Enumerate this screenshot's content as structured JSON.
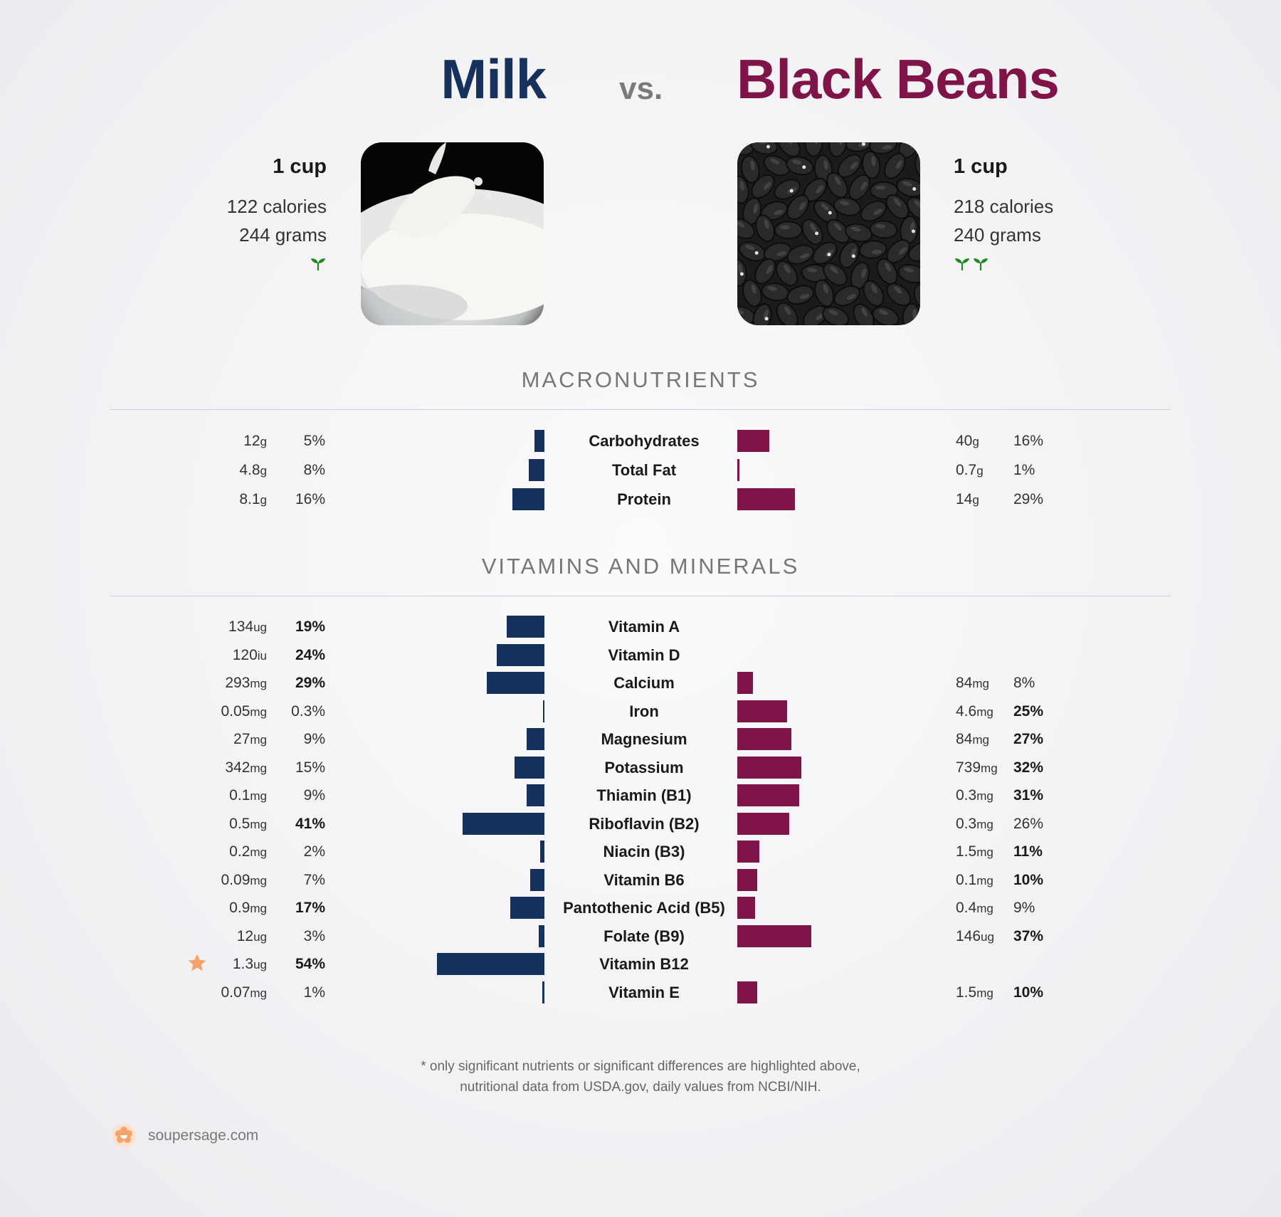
{
  "header": {
    "left_food": "Milk",
    "vs": "vs.",
    "right_food": "Black Beans",
    "colors": {
      "left": "#16325c",
      "right": "#7f1448"
    }
  },
  "left": {
    "serving": "1 cup",
    "calories": "122 calories",
    "grams": "244 grams",
    "sprouts": 1,
    "photo": "milk-splash-photo"
  },
  "right": {
    "serving": "1 cup",
    "calories": "218 calories",
    "grams": "240 grams",
    "sprouts": 2,
    "photo": "black-beans-photo"
  },
  "sections": {
    "macros": "MACRONUTRIENTS",
    "vitamins": "VITAMINS AND MINERALS"
  },
  "chart_data": [
    {
      "type": "bar",
      "title": "MACRONUTRIENTS",
      "series_names": [
        "Milk",
        "Black Beans"
      ],
      "rows": [
        {
          "nutrient": "Carbohydrates",
          "left_amount": "12",
          "left_unit": "g",
          "left_pct": 5,
          "left_pct_label": "5%",
          "left_bold": false,
          "right_amount": "40",
          "right_unit": "g",
          "right_pct": 16,
          "right_pct_label": "16%",
          "right_bold": false
        },
        {
          "nutrient": "Total Fat",
          "left_amount": "4.8",
          "left_unit": "g",
          "left_pct": 8,
          "left_pct_label": "8%",
          "left_bold": false,
          "right_amount": "0.7",
          "right_unit": "g",
          "right_pct": 1,
          "right_pct_label": "1%",
          "right_bold": false
        },
        {
          "nutrient": "Protein",
          "left_amount": "8.1",
          "left_unit": "g",
          "left_pct": 16,
          "left_pct_label": "16%",
          "left_bold": false,
          "right_amount": "14",
          "right_unit": "g",
          "right_pct": 29,
          "right_pct_label": "29%",
          "right_bold": false
        }
      ]
    },
    {
      "type": "bar",
      "title": "VITAMINS AND MINERALS",
      "series_names": [
        "Milk",
        "Black Beans"
      ],
      "rows": [
        {
          "nutrient": "Vitamin A",
          "left_amount": "134",
          "left_unit": "ug",
          "left_pct": 19,
          "left_pct_label": "19%",
          "left_bold": true,
          "right_amount": "",
          "right_unit": "",
          "right_pct": 0,
          "right_pct_label": "",
          "right_bold": false
        },
        {
          "nutrient": "Vitamin D",
          "left_amount": "120",
          "left_unit": "iu",
          "left_pct": 24,
          "left_pct_label": "24%",
          "left_bold": true,
          "right_amount": "",
          "right_unit": "",
          "right_pct": 0,
          "right_pct_label": "",
          "right_bold": false
        },
        {
          "nutrient": "Calcium",
          "left_amount": "293",
          "left_unit": "mg",
          "left_pct": 29,
          "left_pct_label": "29%",
          "left_bold": true,
          "right_amount": "84",
          "right_unit": "mg",
          "right_pct": 8,
          "right_pct_label": "8%",
          "right_bold": false
        },
        {
          "nutrient": "Iron",
          "left_amount": "0.05",
          "left_unit": "mg",
          "left_pct": 0.3,
          "left_pct_label": "0.3%",
          "left_bold": false,
          "right_amount": "4.6",
          "right_unit": "mg",
          "right_pct": 25,
          "right_pct_label": "25%",
          "right_bold": true
        },
        {
          "nutrient": "Magnesium",
          "left_amount": "27",
          "left_unit": "mg",
          "left_pct": 9,
          "left_pct_label": "9%",
          "left_bold": false,
          "right_amount": "84",
          "right_unit": "mg",
          "right_pct": 27,
          "right_pct_label": "27%",
          "right_bold": true
        },
        {
          "nutrient": "Potassium",
          "left_amount": "342",
          "left_unit": "mg",
          "left_pct": 15,
          "left_pct_label": "15%",
          "left_bold": false,
          "right_amount": "739",
          "right_unit": "mg",
          "right_pct": 32,
          "right_pct_label": "32%",
          "right_bold": true
        },
        {
          "nutrient": "Thiamin (B1)",
          "left_amount": "0.1",
          "left_unit": "mg",
          "left_pct": 9,
          "left_pct_label": "9%",
          "left_bold": false,
          "right_amount": "0.3",
          "right_unit": "mg",
          "right_pct": 31,
          "right_pct_label": "31%",
          "right_bold": true
        },
        {
          "nutrient": "Riboflavin (B2)",
          "left_amount": "0.5",
          "left_unit": "mg",
          "left_pct": 41,
          "left_pct_label": "41%",
          "left_bold": true,
          "right_amount": "0.3",
          "right_unit": "mg",
          "right_pct": 26,
          "right_pct_label": "26%",
          "right_bold": false
        },
        {
          "nutrient": "Niacin (B3)",
          "left_amount": "0.2",
          "left_unit": "mg",
          "left_pct": 2,
          "left_pct_label": "2%",
          "left_bold": false,
          "right_amount": "1.5",
          "right_unit": "mg",
          "right_pct": 11,
          "right_pct_label": "11%",
          "right_bold": true
        },
        {
          "nutrient": "Vitamin B6",
          "left_amount": "0.09",
          "left_unit": "mg",
          "left_pct": 7,
          "left_pct_label": "7%",
          "left_bold": false,
          "right_amount": "0.1",
          "right_unit": "mg",
          "right_pct": 10,
          "right_pct_label": "10%",
          "right_bold": true
        },
        {
          "nutrient": "Pantothenic Acid (B5)",
          "left_amount": "0.9",
          "left_unit": "mg",
          "left_pct": 17,
          "left_pct_label": "17%",
          "left_bold": true,
          "right_amount": "0.4",
          "right_unit": "mg",
          "right_pct": 9,
          "right_pct_label": "9%",
          "right_bold": false
        },
        {
          "nutrient": "Folate (B9)",
          "left_amount": "12",
          "left_unit": "ug",
          "left_pct": 3,
          "left_pct_label": "3%",
          "left_bold": false,
          "right_amount": "146",
          "right_unit": "ug",
          "right_pct": 37,
          "right_pct_label": "37%",
          "right_bold": true
        },
        {
          "nutrient": "Vitamin B12",
          "left_amount": "1.3",
          "left_unit": "ug",
          "left_pct": 54,
          "left_pct_label": "54%",
          "left_bold": true,
          "left_star": true,
          "right_amount": "",
          "right_unit": "",
          "right_pct": 0,
          "right_pct_label": "",
          "right_bold": false
        },
        {
          "nutrient": "Vitamin E",
          "left_amount": "0.07",
          "left_unit": "mg",
          "left_pct": 1,
          "left_pct_label": "1%",
          "left_bold": false,
          "right_amount": "1.5",
          "right_unit": "mg",
          "right_pct": 10,
          "right_pct_label": "10%",
          "right_bold": true
        }
      ]
    }
  ],
  "footnote": {
    "line1": "* only significant nutrients or significant differences are highlighted above,",
    "line2": "nutritional data from USDA.gov, daily values from NCBI/NIH."
  },
  "brand": {
    "name": "soupersage.com",
    "icon": "soupersage-logo-icon"
  }
}
